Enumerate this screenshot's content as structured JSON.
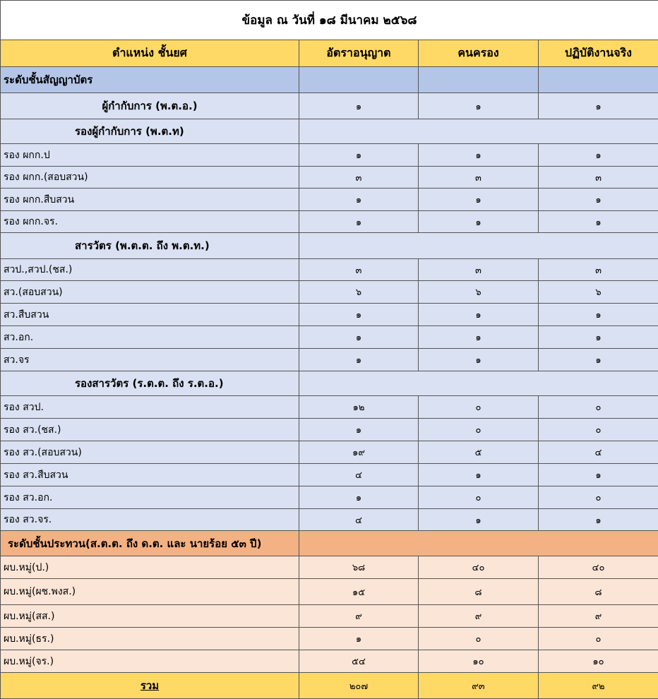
{
  "title": "ข้อมูล ณ วันที่ ๑๘ มีนาคม ๒๕๖๘",
  "header": [
    "ตำแหน่ง ชั้นยศ",
    "อัตราอนุญาต",
    "คนครอง",
    "ปฏิบัติงานจริง"
  ],
  "rows": [
    [
      "ระดับชั้นสัญญาบัตร"
    ],
    [
      "ผู้กำกับการ (พ.ต.อ.)",
      "๑",
      "๑",
      "๑"
    ],
    [
      "รองผู้กำกับการ (พ.ต.ท)"
    ],
    [
      "รอง ผกก.ป",
      "๑",
      "๑",
      "๑"
    ],
    [
      "รอง ผกก.(สอบสวน)",
      "๓",
      "๓",
      "๓"
    ],
    [
      "รอง ผกก.สืบสวน",
      "๑",
      "๑",
      "๑"
    ],
    [
      "รอง ผกก.จร.",
      "๑",
      "๑",
      "๑"
    ],
    [
      "สารวัตร (พ.ต.ต. ถึง พ.ต.ท.)"
    ],
    [
      "สวป.,สวป.(ชส.)",
      "๓",
      "๓",
      "๓"
    ],
    [
      "สว.(สอบสวน)",
      "๖",
      "๖",
      "๖"
    ],
    [
      "สว.สืบสวน",
      "๑",
      "๑",
      "๑"
    ],
    [
      "สว.อก.",
      "๑",
      "๑",
      "๑"
    ],
    [
      "สว.จร",
      "๑",
      "๑",
      "๑"
    ],
    [
      "รองสารวัตร (ร.ต.ต. ถึง ร.ต.อ.)"
    ],
    [
      "รอง สวป.",
      "๑๒",
      "๐",
      "๐"
    ],
    [
      "รอง สว.(ชส.)",
      "๑",
      "๐",
      "๐"
    ],
    [
      "รอง สว.(สอบสวน)",
      "๑๙",
      "๕",
      "๔"
    ],
    [
      "รอง สว.สืบสวน",
      "๔",
      "๑",
      "๑"
    ],
    [
      "รอง สว.อก.",
      "๑",
      "๐",
      "๐"
    ],
    [
      "รอง สว.จร.",
      "๔",
      "๑",
      "๑"
    ],
    [
      "ระดับชั้นประทวน(ส.ต.ต. ถึง ด.ต. และ นายร้อย ๕๓ ปี)"
    ],
    [
      "ผบ.หมู่(ป.)",
      "๖๘",
      "๔๐",
      "๔๐"
    ],
    [
      "ผบ.หมู่(ผช.พงส.)",
      "๑๕",
      "๘",
      "๘"
    ],
    [
      "ผบ.หมู่(สส.)",
      "๙",
      "๙",
      "๙"
    ],
    [
      "ผบ.หมู่(ธร.)",
      "๑",
      "๐",
      "๐"
    ],
    [
      "ผบ.หมู่(จร.)",
      "๕๔",
      "๑๐",
      "๑๐"
    ]
  ],
  "total": [
    "รวม",
    "๒๐๗",
    "๙๓",
    "๙๒"
  ]
}
